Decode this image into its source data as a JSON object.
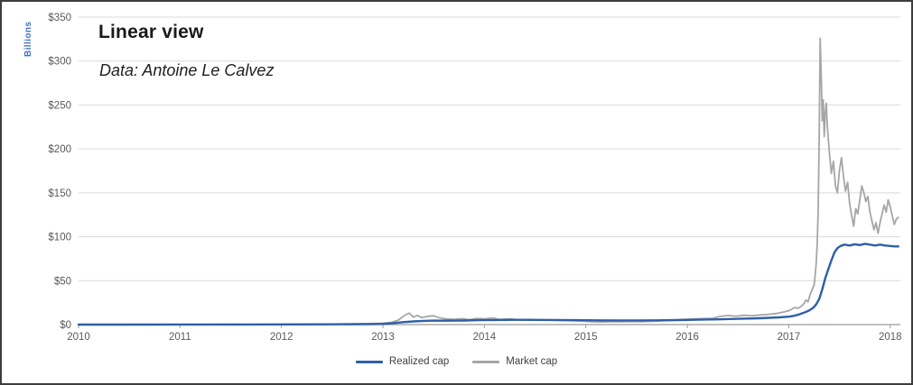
{
  "page": {
    "background": "#ffffff",
    "border_color": "#3d3d3d"
  },
  "chart": {
    "title": "Linear view",
    "subtitle": "Data: Antoine Le Calvez",
    "y_axis_title": "Billions"
  },
  "legend": {
    "items": [
      {
        "label": "Realized cap",
        "color": "#2E5FA8"
      },
      {
        "label": "Market cap",
        "color": "#A6A6A6"
      }
    ]
  },
  "chart_data": {
    "type": "line",
    "title": "Linear view",
    "subtitle": "Data: Antoine Le Calvez",
    "xlabel": "",
    "ylabel": "Billions",
    "xlim": [
      2010,
      2018.1
    ],
    "ylim": [
      0,
      350
    ],
    "x_ticks": [
      2010,
      2011,
      2012,
      2013,
      2014,
      2015,
      2016,
      2017,
      2018
    ],
    "y_ticks": [
      0,
      50,
      100,
      150,
      200,
      250,
      300,
      350
    ],
    "y_tick_labels": [
      "$0",
      "$50",
      "$100",
      "$150",
      "$200",
      "$250",
      "$300",
      "$350"
    ],
    "grid": true,
    "legend_position": "bottom-center",
    "colors": {
      "grid": "#D9D9D9",
      "axis": "#9B9B9B",
      "tick_text": "#595959",
      "y_axis_title_text": "#4472C4"
    },
    "series": [
      {
        "name": "Realized cap",
        "color": "#2E5FA8",
        "width": 2.4,
        "points": [
          [
            2010,
            0
          ],
          [
            2010.5,
            0.05
          ],
          [
            2011,
            0.1
          ],
          [
            2011.5,
            0.15
          ],
          [
            2012,
            0.2
          ],
          [
            2012.5,
            0.35
          ],
          [
            2012.9,
            0.6
          ],
          [
            2013,
            0.8
          ],
          [
            2013.1,
            1.6
          ],
          [
            2013.2,
            2.8
          ],
          [
            2013.3,
            3.6
          ],
          [
            2013.4,
            4.2
          ],
          [
            2013.5,
            4.5
          ],
          [
            2013.65,
            4.4
          ],
          [
            2013.8,
            4.6
          ],
          [
            2013.95,
            5
          ],
          [
            2014.1,
            5.2
          ],
          [
            2014.3,
            5.4
          ],
          [
            2014.5,
            5.3
          ],
          [
            2014.7,
            5.2
          ],
          [
            2014.9,
            5
          ],
          [
            2015.1,
            4.8
          ],
          [
            2015.3,
            4.7
          ],
          [
            2015.5,
            4.7
          ],
          [
            2015.7,
            4.8
          ],
          [
            2015.9,
            5.1
          ],
          [
            2016.1,
            5.5
          ],
          [
            2016.3,
            6
          ],
          [
            2016.5,
            6.6
          ],
          [
            2016.7,
            7.2
          ],
          [
            2016.9,
            8.2
          ],
          [
            2017,
            9
          ],
          [
            2017.05,
            10
          ],
          [
            2017.1,
            11.5
          ],
          [
            2017.15,
            13.5
          ],
          [
            2017.2,
            16
          ],
          [
            2017.24,
            19
          ],
          [
            2017.27,
            23
          ],
          [
            2017.3,
            29
          ],
          [
            2017.33,
            40
          ],
          [
            2017.36,
            53
          ],
          [
            2017.39,
            63
          ],
          [
            2017.42,
            73
          ],
          [
            2017.45,
            82
          ],
          [
            2017.48,
            87
          ],
          [
            2017.51,
            89.5
          ],
          [
            2017.55,
            91
          ],
          [
            2017.6,
            90
          ],
          [
            2017.65,
            91.5
          ],
          [
            2017.7,
            90.5
          ],
          [
            2017.75,
            92
          ],
          [
            2017.8,
            91
          ],
          [
            2017.85,
            90
          ],
          [
            2017.9,
            91
          ],
          [
            2017.95,
            90
          ],
          [
            2018,
            89.5
          ],
          [
            2018.04,
            89
          ],
          [
            2018.08,
            89
          ]
        ]
      },
      {
        "name": "Market cap",
        "color": "#A6A6A6",
        "width": 1.8,
        "points": [
          [
            2010,
            0
          ],
          [
            2010.4,
            0.05
          ],
          [
            2010.8,
            0.1
          ],
          [
            2011.2,
            0.2
          ],
          [
            2011.5,
            0.3
          ],
          [
            2011.8,
            0.15
          ],
          [
            2012.1,
            0.2
          ],
          [
            2012.4,
            0.3
          ],
          [
            2012.6,
            0.6
          ],
          [
            2012.8,
            1
          ],
          [
            2013,
            1.5
          ],
          [
            2013.08,
            2.5
          ],
          [
            2013.15,
            5
          ],
          [
            2013.22,
            11
          ],
          [
            2013.26,
            13
          ],
          [
            2013.3,
            8.5
          ],
          [
            2013.34,
            10.5
          ],
          [
            2013.38,
            8
          ],
          [
            2013.45,
            9.5
          ],
          [
            2013.5,
            10
          ],
          [
            2013.55,
            8
          ],
          [
            2013.62,
            6.5
          ],
          [
            2013.7,
            6
          ],
          [
            2013.78,
            6.8
          ],
          [
            2013.85,
            5.6
          ],
          [
            2013.92,
            7
          ],
          [
            2014,
            6.5
          ],
          [
            2014.08,
            7.6
          ],
          [
            2014.15,
            5.8
          ],
          [
            2014.25,
            6.6
          ],
          [
            2014.35,
            5.2
          ],
          [
            2014.45,
            5.8
          ],
          [
            2014.55,
            5.2
          ],
          [
            2014.65,
            5
          ],
          [
            2014.75,
            4.6
          ],
          [
            2014.85,
            4.4
          ],
          [
            2014.95,
            4
          ],
          [
            2015.05,
            3.2
          ],
          [
            2015.15,
            3
          ],
          [
            2015.25,
            3.3
          ],
          [
            2015.35,
            3.2
          ],
          [
            2015.45,
            3.5
          ],
          [
            2015.55,
            3.4
          ],
          [
            2015.65,
            3.8
          ],
          [
            2015.75,
            4.2
          ],
          [
            2015.85,
            4.8
          ],
          [
            2015.95,
            5.8
          ],
          [
            2016.05,
            6.4
          ],
          [
            2016.15,
            6.8
          ],
          [
            2016.25,
            7.2
          ],
          [
            2016.32,
            9.2
          ],
          [
            2016.4,
            10.4
          ],
          [
            2016.48,
            9.6
          ],
          [
            2016.56,
            10.6
          ],
          [
            2016.64,
            10.2
          ],
          [
            2016.72,
            11
          ],
          [
            2016.8,
            11.6
          ],
          [
            2016.88,
            12.6
          ],
          [
            2016.96,
            14.6
          ],
          [
            2017,
            15.8
          ],
          [
            2017.03,
            17.5
          ],
          [
            2017.06,
            19.5
          ],
          [
            2017.09,
            18.5
          ],
          [
            2017.12,
            20.5
          ],
          [
            2017.15,
            24
          ],
          [
            2017.17,
            28
          ],
          [
            2017.19,
            26
          ],
          [
            2017.21,
            34
          ],
          [
            2017.23,
            40
          ],
          [
            2017.25,
            45
          ],
          [
            2017.26,
            55
          ],
          [
            2017.27,
            70
          ],
          [
            2017.28,
            92
          ],
          [
            2017.29,
            130
          ],
          [
            2017.3,
            210
          ],
          [
            2017.31,
            326
          ],
          [
            2017.32,
            282
          ],
          [
            2017.33,
            232
          ],
          [
            2017.34,
            256
          ],
          [
            2017.35,
            214
          ],
          [
            2017.36,
            242
          ],
          [
            2017.37,
            252
          ],
          [
            2017.38,
            226
          ],
          [
            2017.4,
            196
          ],
          [
            2017.42,
            172
          ],
          [
            2017.44,
            186
          ],
          [
            2017.46,
            158
          ],
          [
            2017.48,
            150
          ],
          [
            2017.5,
            176
          ],
          [
            2017.52,
            190
          ],
          [
            2017.54,
            168
          ],
          [
            2017.56,
            152
          ],
          [
            2017.58,
            162
          ],
          [
            2017.6,
            138
          ],
          [
            2017.62,
            124
          ],
          [
            2017.64,
            112
          ],
          [
            2017.66,
            132
          ],
          [
            2017.68,
            126
          ],
          [
            2017.7,
            142
          ],
          [
            2017.72,
            158
          ],
          [
            2017.74,
            150
          ],
          [
            2017.76,
            140
          ],
          [
            2017.78,
            146
          ],
          [
            2017.8,
            128
          ],
          [
            2017.82,
            118
          ],
          [
            2017.84,
            108
          ],
          [
            2017.86,
            116
          ],
          [
            2017.88,
            104
          ],
          [
            2017.9,
            116
          ],
          [
            2017.92,
            126
          ],
          [
            2017.94,
            136
          ],
          [
            2017.96,
            128
          ],
          [
            2017.98,
            142
          ],
          [
            2018,
            134
          ],
          [
            2018.02,
            124
          ],
          [
            2018.04,
            114
          ],
          [
            2018.06,
            120
          ],
          [
            2018.08,
            122
          ]
        ]
      }
    ]
  }
}
